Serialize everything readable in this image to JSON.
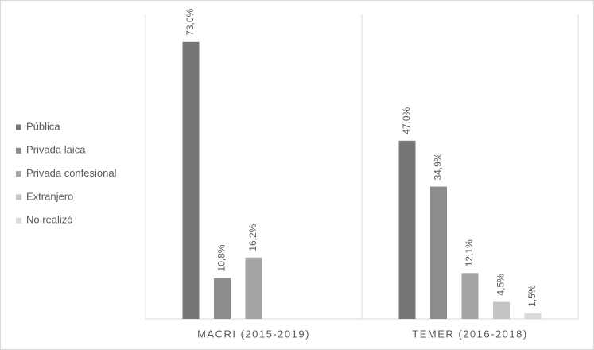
{
  "chart_data": {
    "type": "bar",
    "categories": [
      "MACRI (2015-2019)",
      "TEMER (2016-2018)"
    ],
    "series": [
      {
        "name": "Pública",
        "color": "#767676",
        "values": [
          73.0,
          47.0
        ],
        "value_labels": [
          "73,0%",
          "47,0%"
        ]
      },
      {
        "name": "Privada laica",
        "color": "#8c8c8c",
        "values": [
          10.8,
          34.9
        ],
        "value_labels": [
          "10,8%",
          "34,9%"
        ]
      },
      {
        "name": "Privada confesional",
        "color": "#a5a5a5",
        "values": [
          16.2,
          12.1
        ],
        "value_labels": [
          "16,2%",
          "12,1%"
        ]
      },
      {
        "name": "Extranjero",
        "color": "#c3c3c3",
        "values": [
          null,
          4.5
        ],
        "value_labels": [
          null,
          "4,5%"
        ]
      },
      {
        "name": "No realizó",
        "color": "#dadada",
        "values": [
          null,
          1.5
        ],
        "value_labels": [
          null,
          "1,5%"
        ]
      }
    ],
    "ylim": [
      0,
      80
    ],
    "legend": "left"
  }
}
